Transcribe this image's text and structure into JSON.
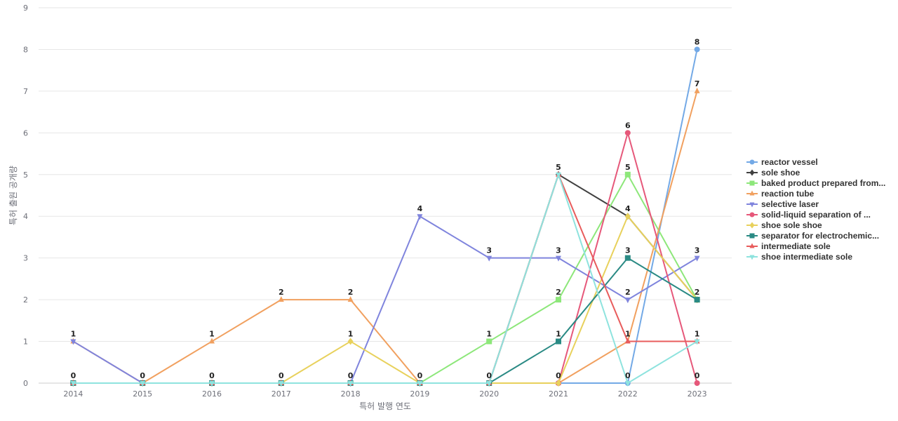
{
  "chart_data": {
    "type": "line",
    "title": "",
    "xlabel": "특허 발행 연도",
    "ylabel": "특허 출원 공개량",
    "x": [
      "2014",
      "2015",
      "2016",
      "2017",
      "2018",
      "2019",
      "2020",
      "2021",
      "2022",
      "2023"
    ],
    "ylim": [
      0,
      9
    ],
    "yticks": [
      0,
      1,
      2,
      3,
      4,
      5,
      6,
      7,
      8,
      9
    ],
    "grid": true,
    "legend_position": "right",
    "series": [
      {
        "name": "reactor vessel",
        "color": "#73a9e6",
        "marker": "circle",
        "values": [
          0,
          0,
          0,
          0,
          0,
          0,
          0,
          0,
          0,
          8
        ]
      },
      {
        "name": "sole shoe",
        "color": "#404040",
        "marker": "diamond",
        "values": [
          0,
          0,
          0,
          0,
          0,
          0,
          0,
          5,
          4,
          2
        ]
      },
      {
        "name": "baked product prepared from...",
        "color": "#8de77a",
        "marker": "square",
        "values": [
          0,
          0,
          0,
          0,
          0,
          0,
          1,
          2,
          5,
          2
        ]
      },
      {
        "name": "reaction tube",
        "color": "#f1a05f",
        "marker": "triangle",
        "values": [
          1,
          0,
          1,
          2,
          2,
          0,
          0,
          0,
          1,
          7
        ]
      },
      {
        "name": "selective laser",
        "color": "#7f84dd",
        "marker": "triangle-down",
        "values": [
          1,
          0,
          0,
          0,
          0,
          4,
          3,
          3,
          2,
          3
        ]
      },
      {
        "name": "solid-liquid separation of ...",
        "color": "#e6587a",
        "marker": "circle",
        "values": [
          0,
          0,
          0,
          0,
          0,
          0,
          0,
          0,
          6,
          0
        ]
      },
      {
        "name": "shoe sole shoe",
        "color": "#e8d15c",
        "marker": "diamond",
        "values": [
          0,
          0,
          0,
          0,
          1,
          0,
          0,
          0,
          4,
          2
        ]
      },
      {
        "name": "separator for electrochemic...",
        "color": "#2a8a84",
        "marker": "square",
        "values": [
          0,
          0,
          0,
          0,
          0,
          0,
          0,
          1,
          3,
          2
        ]
      },
      {
        "name": "intermediate sole",
        "color": "#e85c5c",
        "marker": "triangle",
        "values": [
          0,
          0,
          0,
          0,
          0,
          0,
          0,
          5,
          1,
          1
        ]
      },
      {
        "name": "shoe intermediate sole",
        "color": "#8ee3de",
        "marker": "triangle-down",
        "values": [
          0,
          0,
          0,
          0,
          0,
          0,
          0,
          5,
          0,
          1
        ]
      }
    ],
    "data_labels": [
      {
        "x": "2014",
        "y": 1,
        "text": "1"
      },
      {
        "x": "2014",
        "y": 0,
        "text": "0"
      },
      {
        "x": "2015",
        "y": 0,
        "text": "0"
      },
      {
        "x": "2016",
        "y": 1,
        "text": "1"
      },
      {
        "x": "2016",
        "y": 0,
        "text": "0"
      },
      {
        "x": "2017",
        "y": 2,
        "text": "2"
      },
      {
        "x": "2017",
        "y": 0,
        "text": "0"
      },
      {
        "x": "2018",
        "y": 2,
        "text": "2"
      },
      {
        "x": "2018",
        "y": 1,
        "text": "1"
      },
      {
        "x": "2018",
        "y": 0,
        "text": "0"
      },
      {
        "x": "2019",
        "y": 4,
        "text": "4"
      },
      {
        "x": "2019",
        "y": 0,
        "text": "0"
      },
      {
        "x": "2020",
        "y": 3,
        "text": "3"
      },
      {
        "x": "2020",
        "y": 1,
        "text": "1"
      },
      {
        "x": "2020",
        "y": 0,
        "text": "0"
      },
      {
        "x": "2021",
        "y": 5,
        "text": "5"
      },
      {
        "x": "2021",
        "y": 3,
        "text": "3"
      },
      {
        "x": "2021",
        "y": 2,
        "text": "2"
      },
      {
        "x": "2021",
        "y": 1,
        "text": "1"
      },
      {
        "x": "2021",
        "y": 0,
        "text": "0"
      },
      {
        "x": "2022",
        "y": 6,
        "text": "6"
      },
      {
        "x": "2022",
        "y": 5,
        "text": "5"
      },
      {
        "x": "2022",
        "y": 4,
        "text": "4"
      },
      {
        "x": "2022",
        "y": 3,
        "text": "3"
      },
      {
        "x": "2022",
        "y": 2,
        "text": "2"
      },
      {
        "x": "2022",
        "y": 1,
        "text": "1"
      },
      {
        "x": "2022",
        "y": 0,
        "text": "0"
      },
      {
        "x": "2023",
        "y": 8,
        "text": "8"
      },
      {
        "x": "2023",
        "y": 7,
        "text": "7"
      },
      {
        "x": "2023",
        "y": 3,
        "text": "3"
      },
      {
        "x": "2023",
        "y": 2,
        "text": "2"
      },
      {
        "x": "2023",
        "y": 1,
        "text": "1"
      },
      {
        "x": "2023",
        "y": 0,
        "text": "0"
      }
    ]
  }
}
